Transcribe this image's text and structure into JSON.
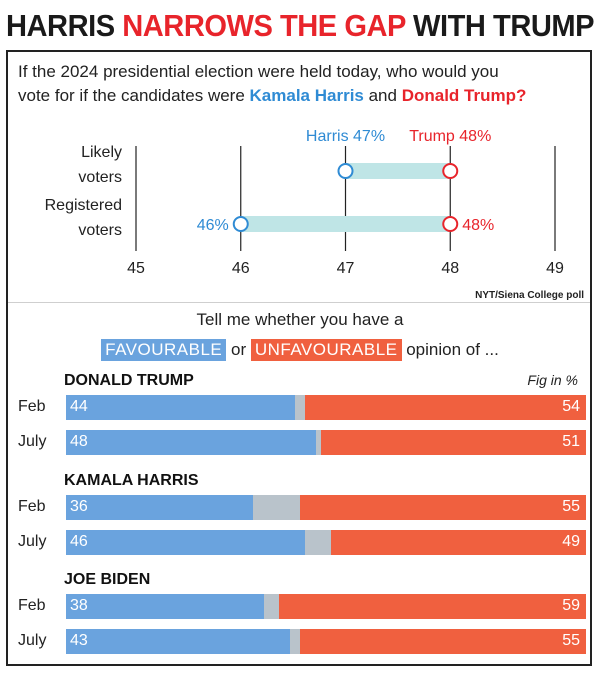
{
  "headline": {
    "part1": "HARRIS ",
    "part2": "NARROWS THE GAP",
    "part3": " WITH TRUMP"
  },
  "question": {
    "line1": "If the 2024 presidential election were held today, who would you",
    "pre": "vote for if the candidates were ",
    "harris": "Kamala Harris",
    "and": " and ",
    "trump": "Donald Trump?"
  },
  "colors": {
    "harris": "#2f8bd4",
    "trump": "#e8242b",
    "range": "#bfe5e6",
    "favourable": "#6aa3de",
    "unfavourable": "#f0603f",
    "neither": "#b9c3cb"
  },
  "chart_data": [
    {
      "type": "dumbbell",
      "x_ticks": [
        "45",
        "46",
        "47",
        "48",
        "49"
      ],
      "xlim": [
        45,
        49
      ],
      "rows": [
        {
          "label_line1": "Likely",
          "label_line2": "voters",
          "harris": 47,
          "trump": 48,
          "harris_label": "Harris 47%",
          "trump_label": "Trump 48%"
        },
        {
          "label_line1": "Registered",
          "label_line2": "voters",
          "harris": 46,
          "trump": 48,
          "harris_label": "46%",
          "trump_label": "48%"
        }
      ],
      "source": "NYT/Siena College poll"
    },
    {
      "type": "bar",
      "stacked": true,
      "intro_line1": "Tell me whether you have a",
      "favourable_label": "FAVOURABLE",
      "or_text": " or ",
      "unfavourable_label": "UNFAVOURABLE",
      "outro_text": " opinion of ...",
      "unit_note": "Fig in %",
      "xlim": [
        0,
        100
      ],
      "groups": [
        {
          "name": "DONALD TRUMP",
          "rows": [
            {
              "label": "Feb",
              "favourable": 44,
              "unfavourable": 54
            },
            {
              "label": "July",
              "favourable": 48,
              "unfavourable": 51
            }
          ]
        },
        {
          "name": "KAMALA HARRIS",
          "rows": [
            {
              "label": "Feb",
              "favourable": 36,
              "unfavourable": 55
            },
            {
              "label": "July",
              "favourable": 46,
              "unfavourable": 49
            }
          ]
        },
        {
          "name": "JOE BIDEN",
          "rows": [
            {
              "label": "Feb",
              "favourable": 38,
              "unfavourable": 59
            },
            {
              "label": "July",
              "favourable": 43,
              "unfavourable": 55
            }
          ]
        }
      ]
    }
  ]
}
